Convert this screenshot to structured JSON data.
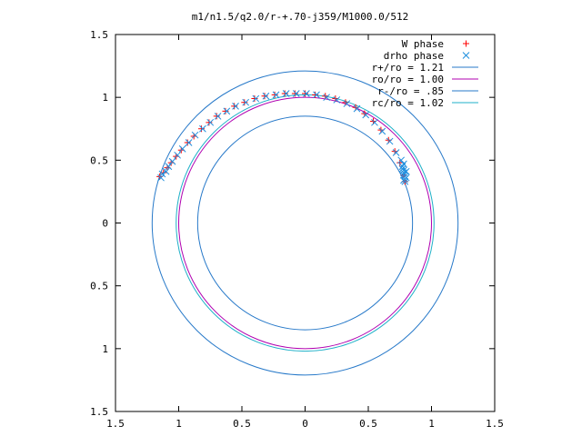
{
  "chart_data": {
    "type": "scatter",
    "title": "m1/n1.5/q2.0/r-+.70-j359/M1000.0/512",
    "xlim": [
      -1.5,
      1.5
    ],
    "ylim": [
      -1.5,
      1.5
    ],
    "x_ticks": [
      -1.5,
      -1,
      -0.5,
      0,
      0.5,
      1,
      1.5
    ],
    "y_ticks": [
      -1.5,
      -1,
      -0.5,
      0,
      0.5,
      1,
      1.5
    ],
    "x_tick_labels": [
      "1.5",
      "1",
      "0.5",
      "0",
      "0.5",
      "1",
      "1.5"
    ],
    "y_tick_labels": [
      "1.5",
      "1",
      "0.5",
      "0",
      "0.5",
      "1",
      "1.5"
    ],
    "grid": false,
    "legend_position": "top-right",
    "series": [
      {
        "name": "W phase",
        "kind": "points",
        "marker": "+",
        "color": "#ff0000",
        "points": [
          [
            -1.15,
            0.37
          ],
          [
            -1.12,
            0.4
          ],
          [
            -1.09,
            0.44
          ],
          [
            -1.06,
            0.48
          ],
          [
            -1.02,
            0.53
          ],
          [
            -0.98,
            0.58
          ],
          [
            -0.93,
            0.64
          ],
          [
            -0.88,
            0.69
          ],
          [
            -0.82,
            0.75
          ],
          [
            -0.76,
            0.8
          ],
          [
            -0.7,
            0.85
          ],
          [
            -0.63,
            0.89
          ],
          [
            -0.56,
            0.93
          ],
          [
            -0.48,
            0.96
          ],
          [
            -0.4,
            0.99
          ],
          [
            -0.32,
            1.01
          ],
          [
            -0.24,
            1.02
          ],
          [
            -0.16,
            1.03
          ],
          [
            -0.08,
            1.03
          ],
          [
            0.0,
            1.03
          ],
          [
            0.08,
            1.02
          ],
          [
            0.16,
            1.01
          ],
          [
            0.24,
            0.99
          ],
          [
            0.32,
            0.96
          ],
          [
            0.4,
            0.92
          ],
          [
            0.47,
            0.87
          ],
          [
            0.54,
            0.81
          ],
          [
            0.6,
            0.74
          ],
          [
            0.66,
            0.66
          ],
          [
            0.71,
            0.57
          ],
          [
            0.75,
            0.48
          ],
          [
            0.78,
            0.38
          ],
          [
            0.79,
            0.33
          ]
        ]
      },
      {
        "name": "drho phase",
        "kind": "points",
        "marker": "x",
        "color": "#1f8fdf",
        "points": [
          [
            -1.14,
            0.36
          ],
          [
            -1.13,
            0.39
          ],
          [
            -1.1,
            0.41
          ],
          [
            -1.08,
            0.45
          ],
          [
            -1.05,
            0.49
          ],
          [
            -1.01,
            0.54
          ],
          [
            -0.97,
            0.59
          ],
          [
            -0.92,
            0.64
          ],
          [
            -0.87,
            0.7
          ],
          [
            -0.81,
            0.75
          ],
          [
            -0.75,
            0.8
          ],
          [
            -0.69,
            0.85
          ],
          [
            -0.62,
            0.89
          ],
          [
            -0.55,
            0.93
          ],
          [
            -0.47,
            0.96
          ],
          [
            -0.39,
            0.99
          ],
          [
            -0.31,
            1.01
          ],
          [
            -0.23,
            1.02
          ],
          [
            -0.15,
            1.03
          ],
          [
            -0.07,
            1.03
          ],
          [
            0.01,
            1.03
          ],
          [
            0.09,
            1.02
          ],
          [
            0.17,
            1.0
          ],
          [
            0.25,
            0.98
          ],
          [
            0.33,
            0.95
          ],
          [
            0.41,
            0.91
          ],
          [
            0.48,
            0.86
          ],
          [
            0.55,
            0.8
          ],
          [
            0.61,
            0.73
          ],
          [
            0.67,
            0.65
          ],
          [
            0.72,
            0.56
          ],
          [
            0.76,
            0.5
          ],
          [
            0.77,
            0.45
          ],
          [
            0.78,
            0.42
          ],
          [
            0.78,
            0.4
          ],
          [
            0.79,
            0.37
          ],
          [
            0.79,
            0.35
          ],
          [
            0.79,
            0.33
          ],
          [
            0.78,
            0.34
          ],
          [
            0.8,
            0.36
          ],
          [
            0.78,
            0.38
          ],
          [
            0.8,
            0.41
          ],
          [
            0.77,
            0.43
          ],
          [
            0.78,
            0.47
          ]
        ]
      },
      {
        "name": "r+/ro = 1.21",
        "kind": "circle",
        "radius": 1.21,
        "color": "#2779c9"
      },
      {
        "name": "ro/ro = 1.00",
        "kind": "circle",
        "radius": 1.0,
        "color": "#b000b0"
      },
      {
        "name": "r-/ro = .85",
        "kind": "circle",
        "radius": 0.85,
        "color": "#2779c9"
      },
      {
        "name": "rc/ro = 1.02",
        "kind": "circle",
        "radius": 1.02,
        "color": "#1fb0c8"
      }
    ]
  }
}
